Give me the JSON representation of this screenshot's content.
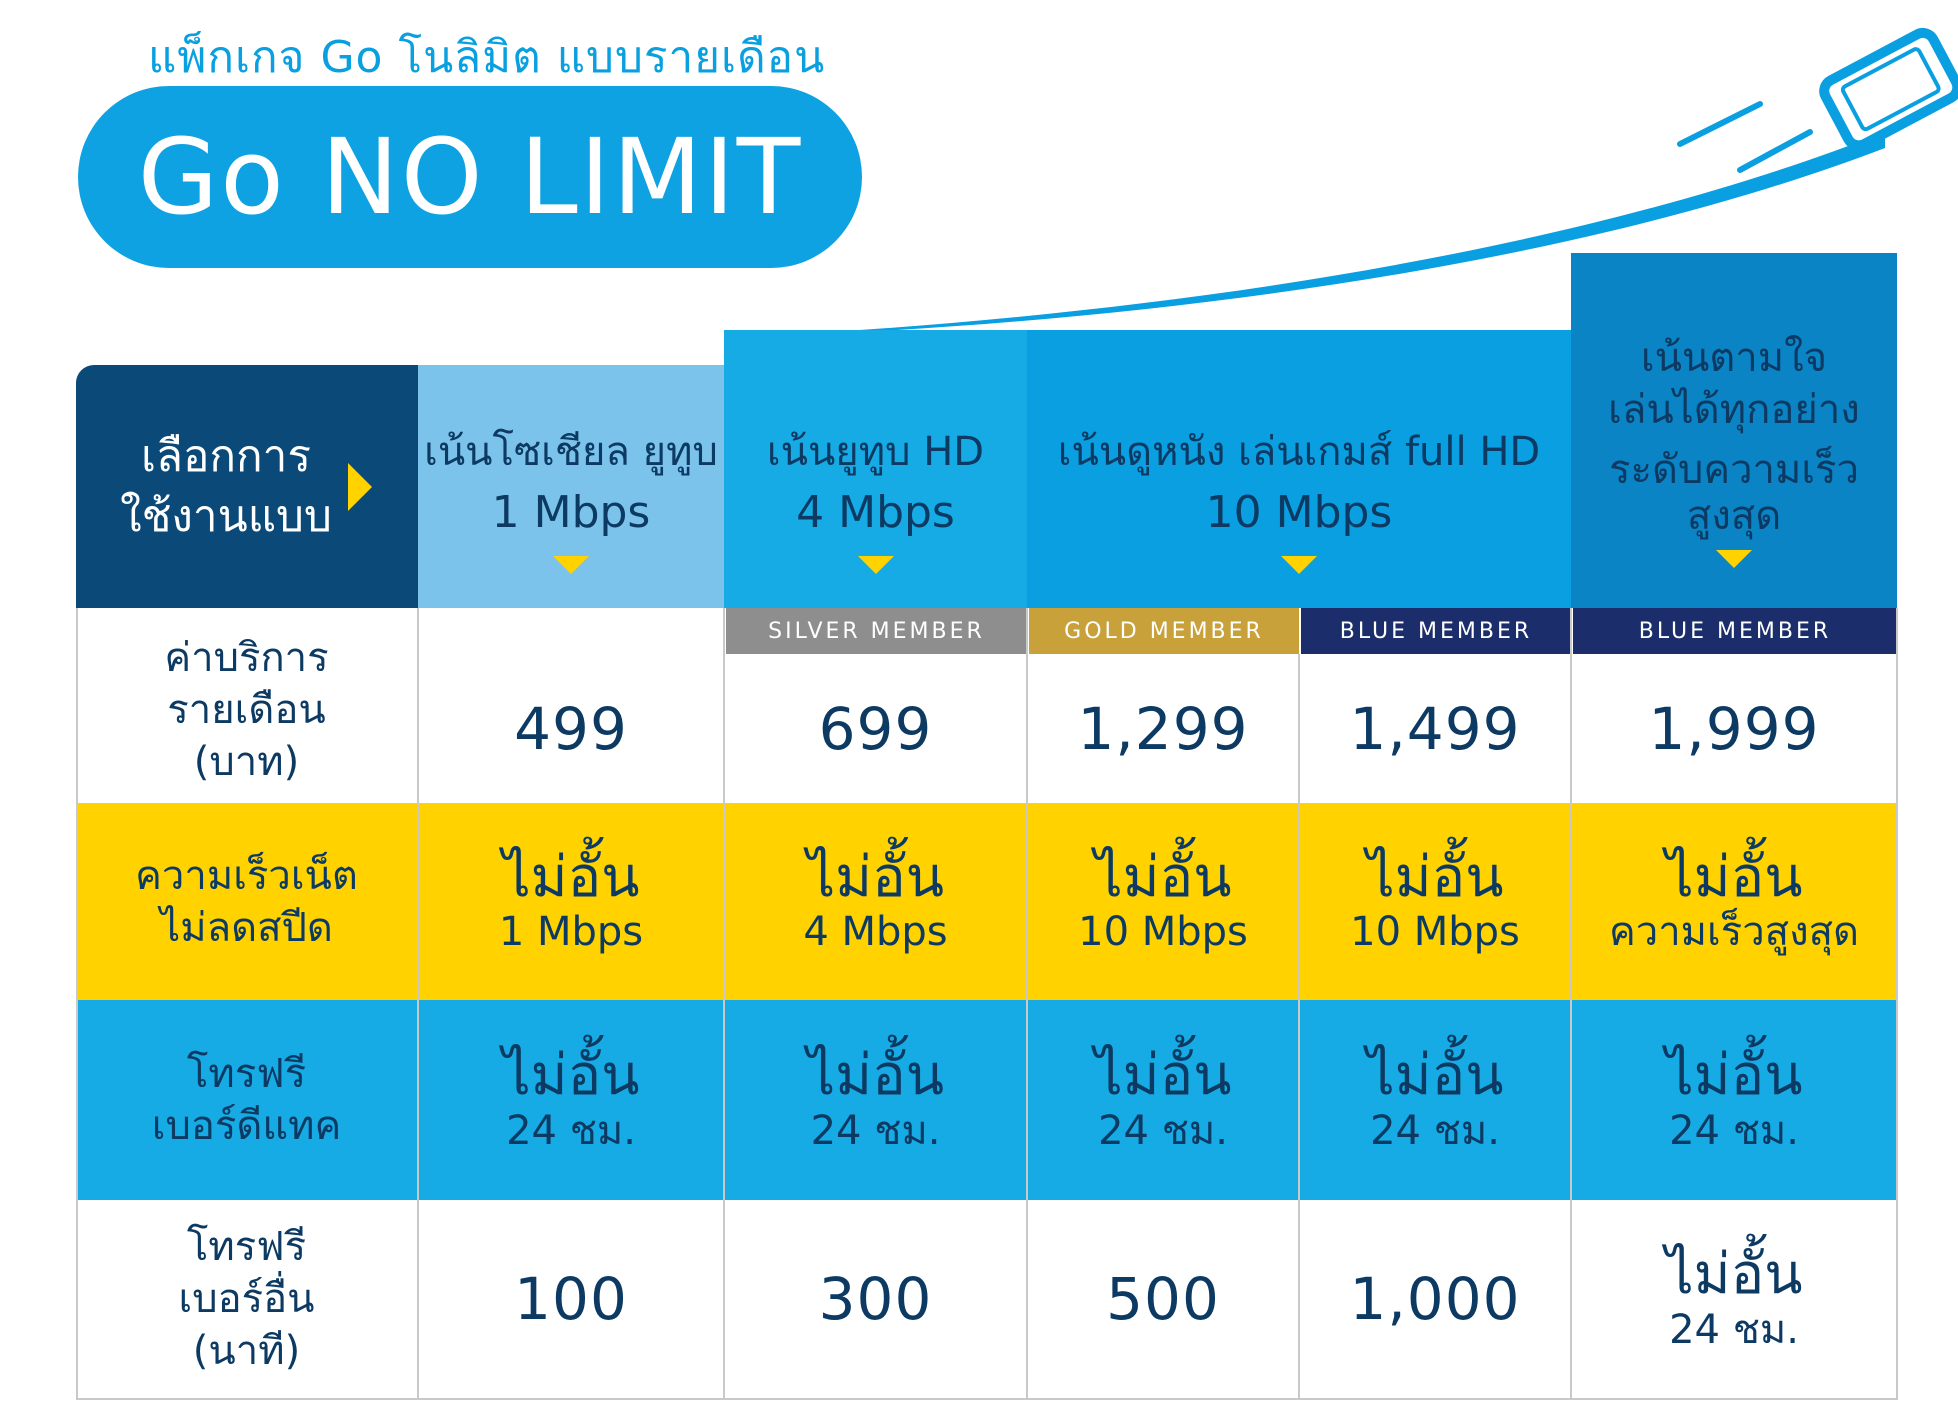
{
  "subtitle": "แพ็กเกจ Go โนลิมิต แบบรายเดือน",
  "title": "Go NO LIMIT",
  "colors": {
    "navy": "#0b4a78",
    "light_blue": "#7bc3ea",
    "mid_blue": "#16abe5",
    "blue": "#0a9fe0",
    "deep_blue": "#0a84c4",
    "yellow": "#ffd200",
    "silver": "#8e8e8e",
    "gold": "#c9a13b",
    "dark_navy": "#1b2e6b"
  },
  "header": {
    "corner": {
      "line1": "เลือกการ",
      "line2": "ใช้งานแบบ",
      "arrow_icon": "triangle-right-icon"
    },
    "plans": [
      {
        "name": "เน้นโซเชียล ยูทูบ",
        "speed": "1 Mbps"
      },
      {
        "name": "เน้นยูทูบ HD",
        "speed": "4 Mbps"
      },
      {
        "name": "เน้นดูหนัง เล่นเกมส์ full HD",
        "speed": "10 Mbps"
      },
      {
        "line1": "เน้นตามใจ",
        "line2": "เล่นได้ทุกอย่าง",
        "line3": "ระดับความเร็ว",
        "line4": "สูงสุด"
      }
    ]
  },
  "badges": [
    "SILVER MEMBER",
    "GOLD MEMBER",
    "BLUE MEMBER",
    "BLUE MEMBER"
  ],
  "rows": {
    "price": {
      "label": [
        "ค่าบริการ",
        "รายเดือน",
        "(บาท)"
      ],
      "values": [
        "499",
        "699",
        "1,299",
        "1,499",
        "1,999"
      ]
    },
    "speed": {
      "label": [
        "ความเร็วเน็ต",
        "ไม่ลดสปีด"
      ],
      "values": [
        {
          "main": "ไม่อั้น",
          "sub": "1 Mbps"
        },
        {
          "main": "ไม่อั้น",
          "sub": "4 Mbps"
        },
        {
          "main": "ไม่อั้น",
          "sub": "10 Mbps"
        },
        {
          "main": "ไม่อั้น",
          "sub": "10 Mbps"
        },
        {
          "main": "ไม่อั้น",
          "sub": "ความเร็วสูงสุด"
        }
      ]
    },
    "dtac_calls": {
      "label": [
        "โทรฟรี",
        "เบอร์ดีแทค"
      ],
      "values": [
        {
          "main": "ไม่อั้น",
          "sub": "24 ชม."
        },
        {
          "main": "ไม่อั้น",
          "sub": "24 ชม."
        },
        {
          "main": "ไม่อั้น",
          "sub": "24 ชม."
        },
        {
          "main": "ไม่อั้น",
          "sub": "24 ชม."
        },
        {
          "main": "ไม่อั้น",
          "sub": "24 ชม."
        }
      ]
    },
    "other_calls": {
      "label": [
        "โทรฟรี",
        "เบอร์อื่น",
        "(นาที)"
      ],
      "values": [
        "100",
        "300",
        "500",
        "1,000"
      ],
      "last": {
        "main": "ไม่อั้น",
        "sub": "24 ชม."
      }
    }
  }
}
